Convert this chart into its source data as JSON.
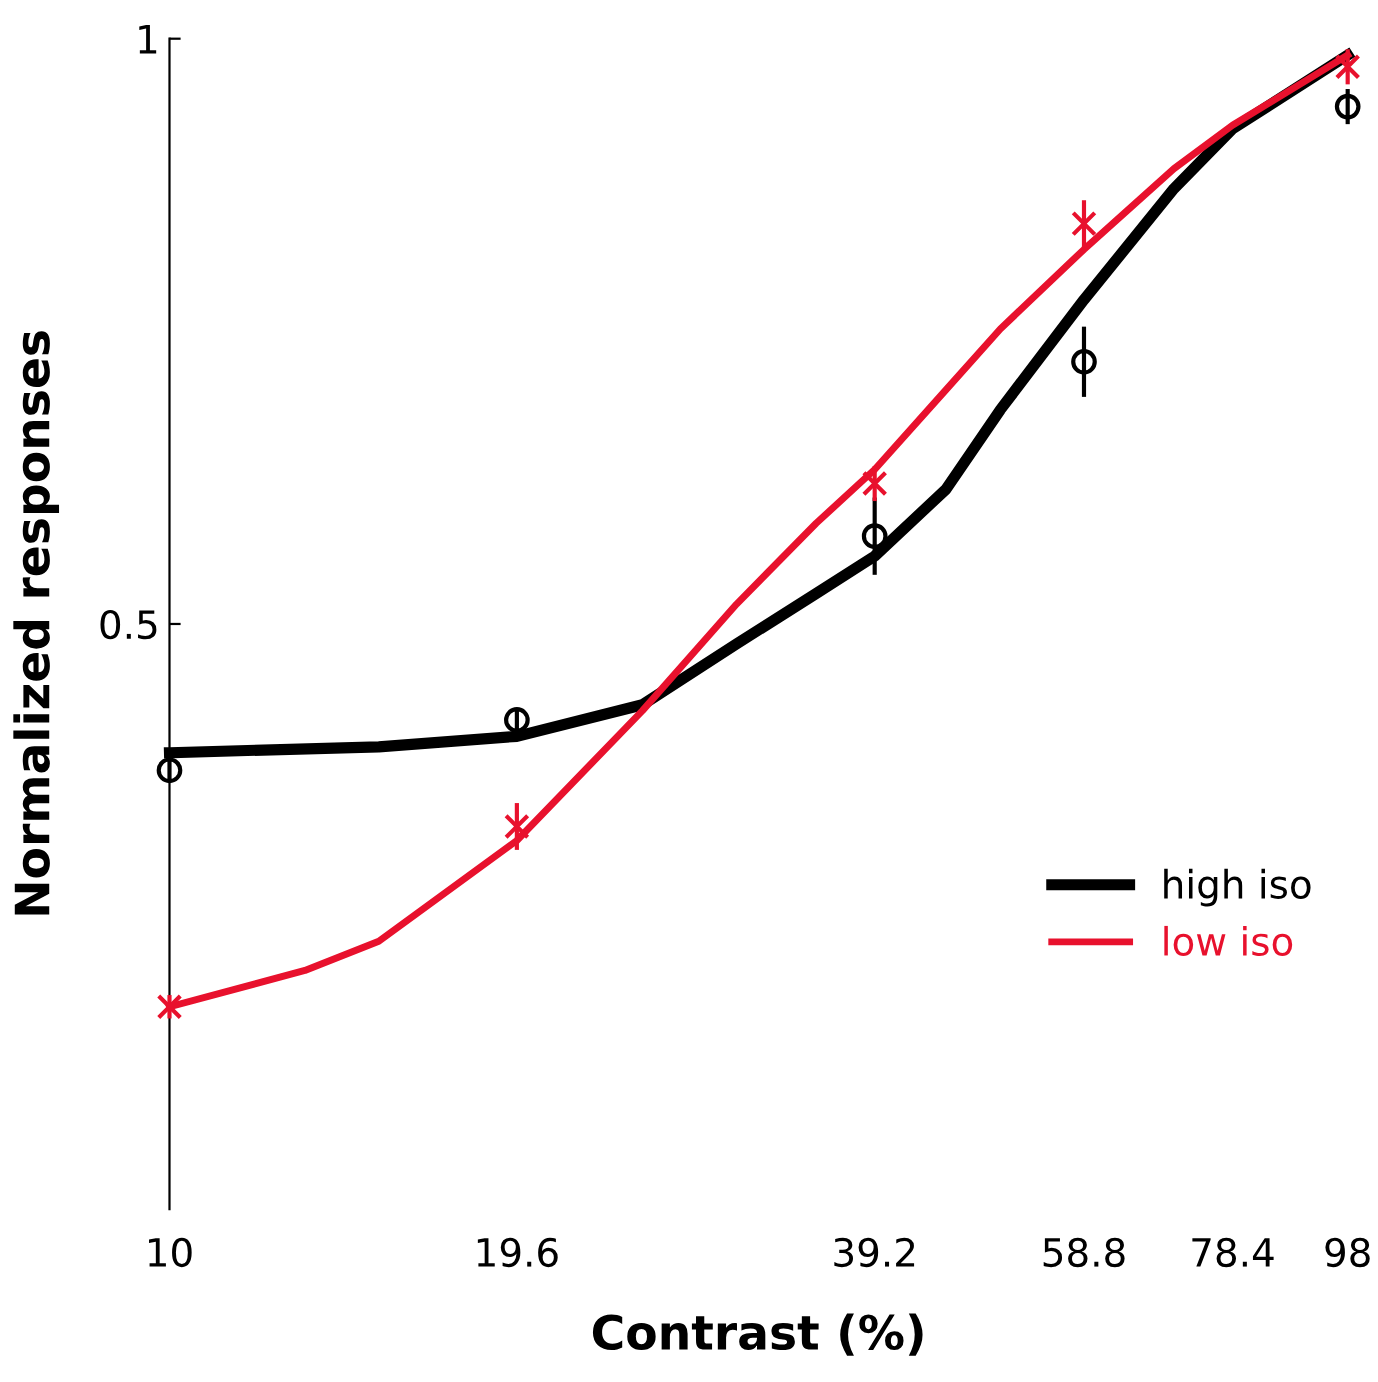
{
  "chart_data": {
    "type": "line",
    "xlabel": "Contrast (%)",
    "ylabel": "Normalized responses",
    "log": "x",
    "xlim": [
      10,
      98
    ],
    "ylim": [
      0,
      1
    ],
    "xticks": [
      10,
      19.6,
      39.2,
      58.8,
      78.4,
      98
    ],
    "yticks": [
      0.5,
      1
    ],
    "grid": false,
    "legend": "bottom right",
    "line_style": "solid",
    "series": [
      {
        "name": "high iso",
        "color": "#000000",
        "marker": "none",
        "x": [
          10,
          15,
          19.6,
          25,
          30,
          35,
          39.2,
          45,
          50,
          58.8,
          70,
          78.4,
          98
        ],
        "values": [
          0.39,
          0.395,
          0.404,
          0.431,
          0.483,
          0.526,
          0.558,
          0.615,
          0.683,
          0.777,
          0.872,
          0.923,
          0.986
        ]
      },
      {
        "name": "low iso",
        "color": "#e8112d",
        "marker": "none",
        "x": [
          10,
          13,
          15,
          19.6,
          25,
          30,
          35,
          39.2,
          45,
          50,
          58.8,
          70,
          78.4,
          98
        ],
        "values": [
          0.173,
          0.204,
          0.229,
          0.315,
          0.426,
          0.517,
          0.586,
          0.632,
          0.7,
          0.752,
          0.82,
          0.889,
          0.926,
          0.986
        ]
      },
      {
        "type": "scatter",
        "color": "#000000",
        "marker": "circle",
        "x": [
          10,
          19.6,
          39.2,
          58.8,
          98
        ],
        "values": [
          0.375,
          0.418,
          0.575,
          0.724,
          0.942
        ],
        "errors": [
          0.01,
          0.01,
          0.033,
          0.03,
          0.015
        ]
      },
      {
        "type": "scatter",
        "color": "#e8112d",
        "marker": "cross",
        "x": [
          10,
          19.6,
          39.2,
          58.8,
          98
        ],
        "values": [
          0.173,
          0.327,
          0.62,
          0.842,
          0.976
        ],
        "errors": [
          0.01,
          0.02,
          0.015,
          0.02,
          0.015
        ]
      }
    ]
  }
}
